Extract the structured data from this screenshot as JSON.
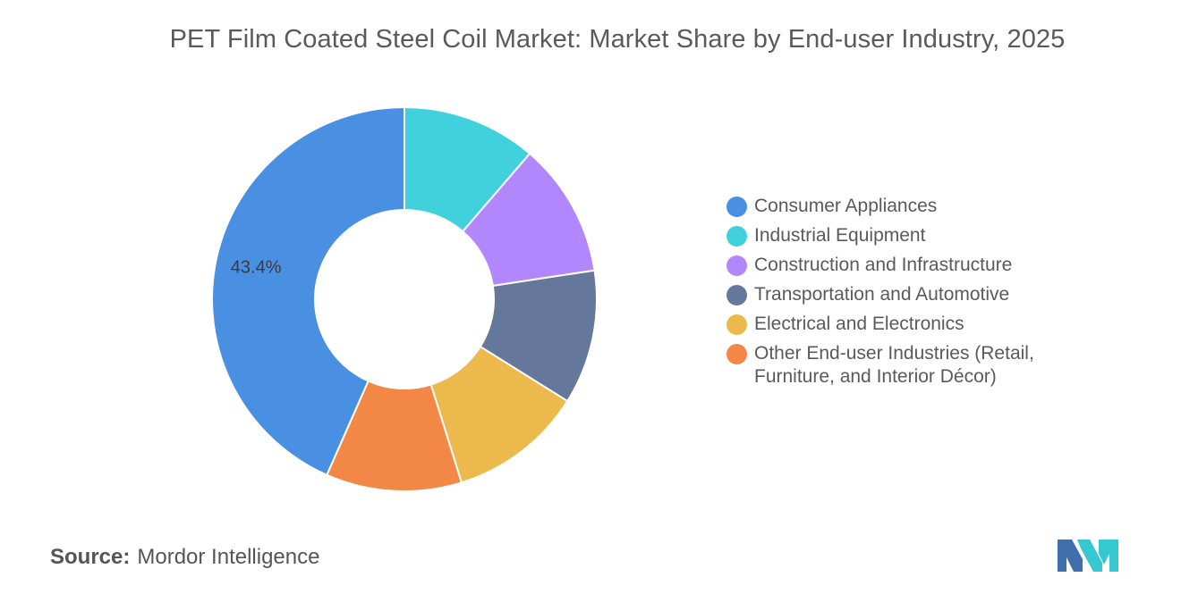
{
  "chart_data": {
    "type": "pie",
    "donut": true,
    "title": "PET Film Coated Steel Coil Market: Market Share by End-user Industry, 2025",
    "categories": [
      "Consumer Appliances",
      "Industrial Equipment",
      "Construction and Infrastructure",
      "Transportation and Automotive",
      "Electrical and Electronics",
      "Other End-user Industries (Retail, Furniture, and Interior Décor)"
    ],
    "values": [
      43.4,
      11.3,
      11.3,
      11.3,
      11.3,
      11.4
    ],
    "colors": [
      "#4a90e2",
      "#41d1dc",
      "#b286fc",
      "#65789b",
      "#ebb94c",
      "#f38745"
    ],
    "data_labels": [
      "43.4%",
      "",
      "",
      "",
      "",
      ""
    ],
    "legend_position": "right"
  },
  "source": {
    "prefix": "Source:",
    "name": "Mordor Intelligence"
  },
  "logo": {
    "colors": [
      "#3e6fa8",
      "#37c7cf"
    ]
  }
}
